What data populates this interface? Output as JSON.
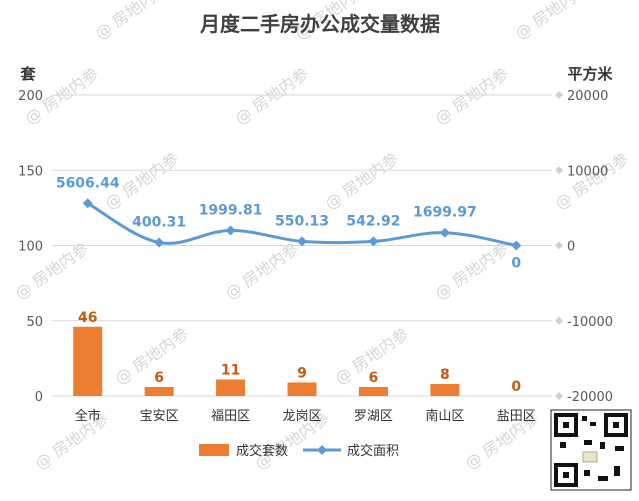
{
  "chart_data": {
    "type": "bar",
    "title": "月度二手房办公成交量数据",
    "categories": [
      "全市",
      "宝安区",
      "福田区",
      "龙岗区",
      "罗湖区",
      "南山区",
      "盐田区"
    ],
    "series": [
      {
        "name": "成交套数",
        "type": "bar",
        "axis": "left",
        "color": "#ed7d31",
        "values": [
          46,
          6,
          11,
          9,
          6,
          8,
          0
        ]
      },
      {
        "name": "成交面积",
        "type": "line",
        "axis": "right",
        "color": "#5b9bd5",
        "values": [
          5606.44,
          400.31,
          1999.81,
          550.13,
          542.92,
          1699.97,
          0
        ]
      }
    ],
    "ylabel": "套",
    "ylabel_right": "平方米",
    "ylim": [
      0,
      200
    ],
    "yticks": [
      0,
      50,
      100,
      150,
      200
    ],
    "ylim_right": [
      -20000,
      20000
    ],
    "yticks_right": [
      -20000,
      -10000,
      0,
      10000,
      20000
    ],
    "grid": true,
    "legend_position": "bottom"
  },
  "watermark": "@ 房地内参"
}
